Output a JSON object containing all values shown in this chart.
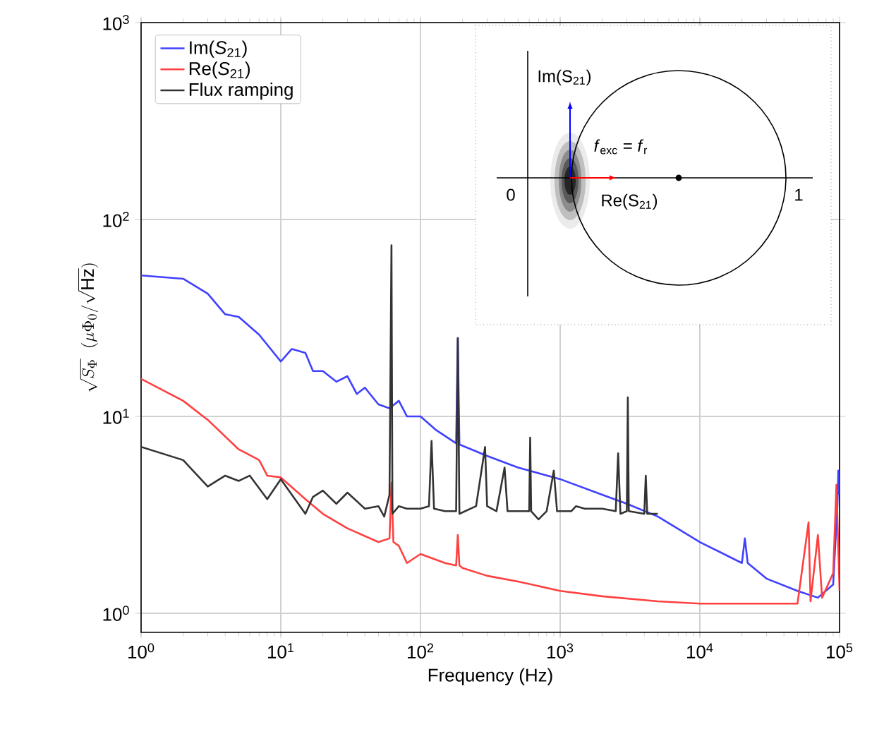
{
  "chart_data": {
    "type": "line",
    "xlabel": "Frequency (Hz)",
    "ylabel": "\\sqrt{S_\\Phi}\\ \\ (\\mu\\Phi_0/\\sqrt{\\mathrm{Hz}})",
    "log": "xy",
    "grid": true,
    "legend": "top left",
    "marker": "none",
    "line_style": "solid",
    "xlim": [
      1,
      100000
    ],
    "ylim": [
      0.8,
      1000
    ],
    "xticks": [
      {
        "value": 1,
        "label": "10$^{0}$"
      },
      {
        "value": 10,
        "label": "10$^{1}$"
      },
      {
        "value": 100,
        "label": "10$^{2}$"
      },
      {
        "value": 1000,
        "label": "10$^{3}$"
      },
      {
        "value": 10000,
        "label": "10$^{4}$"
      },
      {
        "value": 100000,
        "label": "10$^{5}$"
      }
    ],
    "yticks": [
      {
        "value": 1,
        "label": "10$^{0}$"
      },
      {
        "value": 10,
        "label": "10$^{1}$"
      },
      {
        "value": 100,
        "label": "10$^{2}$"
      },
      {
        "value": 1000,
        "label": "10$^{3}$"
      }
    ],
    "series": [
      {
        "name": "Im(*S*$_{21}$)",
        "color": "#4040ff",
        "x": [
          1,
          2,
          3,
          4,
          5,
          7,
          10,
          12,
          15,
          17,
          20,
          25,
          30,
          35,
          40,
          50,
          60,
          70,
          80,
          100,
          130,
          180,
          185,
          190,
          300,
          500,
          1000,
          2000,
          3000,
          5000,
          10000,
          20000,
          21000,
          22000,
          30000,
          50000,
          70000,
          90000,
          96500,
          98000,
          100000
        ],
        "values": [
          52,
          50,
          42,
          33,
          32,
          26,
          19,
          22,
          21,
          17,
          17,
          15,
          16,
          13,
          14,
          11.5,
          11,
          12,
          10,
          10,
          8.5,
          7.3,
          25,
          7.2,
          6.3,
          5.5,
          4.8,
          4.0,
          3.6,
          3.1,
          2.3,
          1.8,
          2.4,
          1.8,
          1.5,
          1.3,
          1.2,
          1.4,
          3.5,
          5.3,
          4
        ]
      },
      {
        "name": "Re(*S*$_{21}$)",
        "color": "#ff4040",
        "x": [
          1,
          2,
          3,
          5,
          7,
          8,
          10,
          15,
          20,
          30,
          50,
          60,
          62,
          64,
          70,
          80,
          100,
          150,
          180,
          185,
          190,
          200,
          300,
          500,
          1000,
          2000,
          5000,
          10000,
          20000,
          50000,
          60000,
          62000,
          70000,
          75000,
          90000,
          95000,
          100000
        ],
        "values": [
          15.5,
          12,
          9.6,
          6.8,
          6.0,
          5.0,
          4.9,
          3.8,
          3.2,
          2.7,
          2.3,
          2.4,
          4.6,
          2.3,
          2.2,
          1.8,
          2.0,
          1.8,
          1.75,
          2.5,
          1.75,
          1.7,
          1.55,
          1.45,
          1.3,
          1.22,
          1.15,
          1.12,
          1.12,
          1.12,
          2.9,
          1.15,
          2.5,
          1.2,
          1.6,
          4.5,
          1.3
        ]
      },
      {
        "name": "Flux ramping",
        "color": "#333333",
        "x": [
          1,
          2,
          3,
          4,
          5,
          6,
          8,
          10,
          12,
          15,
          17,
          20,
          25,
          30,
          40,
          50,
          55,
          60,
          62,
          63,
          70,
          80,
          100,
          115,
          120,
          125,
          150,
          180,
          185,
          190,
          250,
          290,
          300,
          350,
          400,
          420,
          600,
          610,
          620,
          700,
          800,
          900,
          950,
          1200,
          1300,
          1500,
          2000,
          2500,
          2600,
          2700,
          3000,
          3050,
          3100,
          4000,
          4100,
          4200,
          5000
        ],
        "values": [
          7,
          6,
          4.4,
          5,
          4.7,
          5,
          3.8,
          4.8,
          4,
          3.2,
          3.9,
          4.2,
          3.6,
          4.1,
          3.4,
          3.5,
          3.1,
          4,
          74,
          3.2,
          3.5,
          3.4,
          3.4,
          3.5,
          7.5,
          3.4,
          3.3,
          3.3,
          25,
          3.2,
          3.5,
          7,
          3.5,
          3.3,
          5.5,
          3.3,
          3.3,
          7.8,
          3.3,
          3.0,
          3.3,
          5.3,
          3.3,
          3.3,
          3.5,
          3.4,
          3.4,
          3.3,
          6.5,
          3.2,
          3.3,
          12.5,
          3.3,
          3.2,
          5,
          3.2,
          3.2
        ]
      }
    ],
    "annotations": [
      "Im(S$_{21}$)",
      "Re(S$_{21}$)",
      "0",
      "1",
      "*f*$_{exc}$ = *f*$_{r}$"
    ]
  }
}
